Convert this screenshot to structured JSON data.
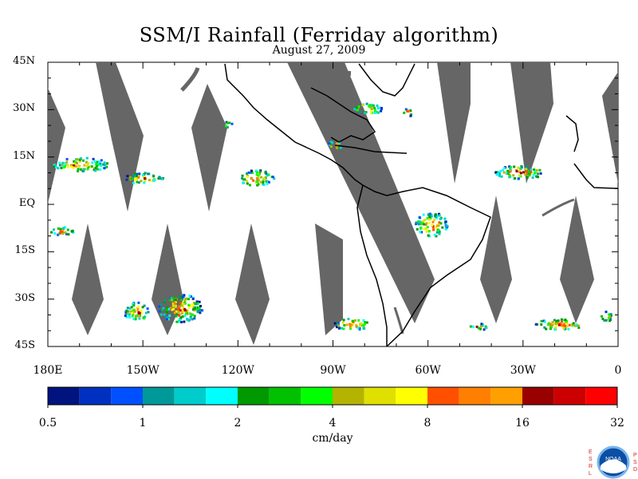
{
  "title": "SSM/I Rainfall (Ferriday algorithm)",
  "subtitle": "August 27, 2009",
  "map": {
    "lat_labels": [
      "45N",
      "30N",
      "15N",
      "EQ",
      "15S",
      "30S",
      "45S"
    ],
    "lon_labels": [
      "180E",
      "150W",
      "120W",
      "90W",
      "60W",
      "30W",
      "0"
    ],
    "extent": {
      "lon_min": -180,
      "lon_max": 0,
      "lat_min": -45,
      "lat_max": 45
    },
    "colors": {
      "coast": "#000000",
      "swath_gap": "#666666",
      "land": "#ffffff",
      "ocean": "#ffffff"
    }
  },
  "colorbar": {
    "title": "cm/day",
    "tick_labels": [
      "0.5",
      "1",
      "2",
      "4",
      "8",
      "16",
      "32"
    ],
    "colors": [
      "#00137f",
      "#0030bf",
      "#0050ff",
      "#009999",
      "#00cccc",
      "#00ffff",
      "#009900",
      "#00c000",
      "#00ff00",
      "#b3b300",
      "#e0e000",
      "#ffff00",
      "#ff5000",
      "#ff7f00",
      "#ffa000",
      "#990000",
      "#cc0000",
      "#ff0000"
    ]
  },
  "logo": {
    "left_letters": [
      "E",
      "S",
      "R",
      "L"
    ],
    "center_text": "NOAA",
    "right_letters": [
      "P",
      "S",
      "D"
    ]
  }
}
